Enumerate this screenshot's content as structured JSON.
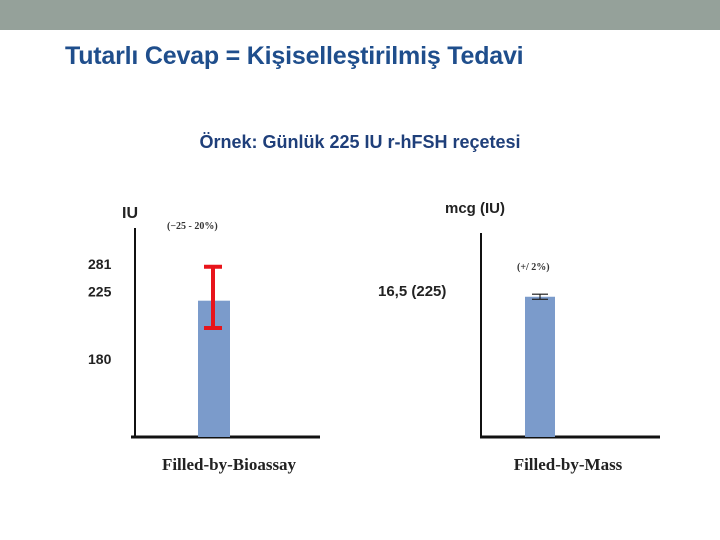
{
  "slide": {
    "title": "Tutarlı Cevap = Kişiselleştirilmiş Tedavi",
    "subtitle": "Örnek: Günlük 225 IU r-hFSH reçetesi"
  },
  "colors": {
    "band": "#95a19a",
    "title": "#1f4e8c",
    "bar": "#7b9bcb",
    "error_bar_left": "#e8141b",
    "error_bar_right": "#222222"
  },
  "chart_data": [
    {
      "type": "bar",
      "ylabel": "IU",
      "categories": [
        "Filled-by-Bioassay"
      ],
      "values": [
        225
      ],
      "error_range": [
        180,
        281
      ],
      "error_annotation": "(−25 - 20%)",
      "ytick_labels": [
        "281",
        "225",
        "180"
      ],
      "ytick_values": [
        281,
        225,
        180
      ],
      "ylim": [
        0,
        345
      ],
      "grid": false
    },
    {
      "type": "bar",
      "ylabel": "mcg (IU)",
      "categories": [
        "Filled-by-Mass"
      ],
      "values": [
        16.5
      ],
      "error_range": [
        16.2,
        16.8
      ],
      "error_annotation": "(+/  2%)",
      "ytick_labels": [
        "16,5 (225)"
      ],
      "ytick_values": [
        16.5
      ],
      "ylim": [
        0,
        24
      ],
      "grid": false
    }
  ]
}
